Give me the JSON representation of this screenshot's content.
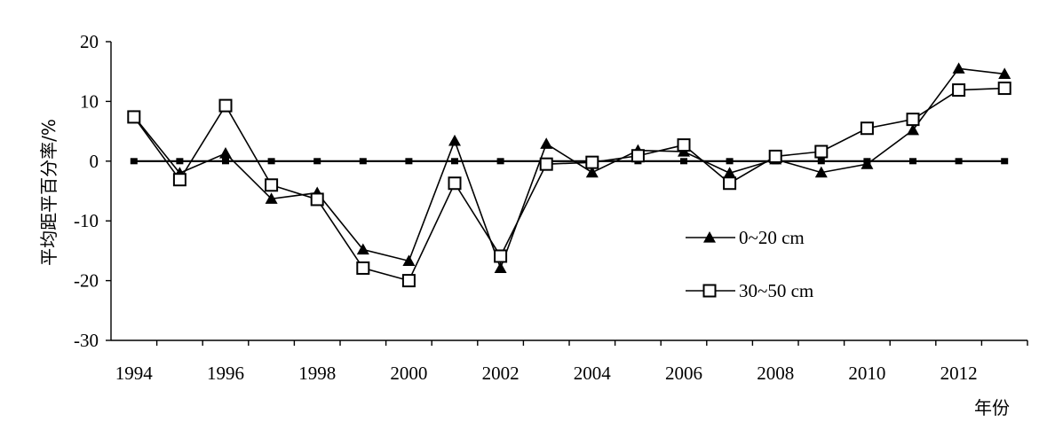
{
  "chart_data": {
    "type": "line",
    "title": "",
    "xlabel": "年份",
    "ylabel": "平均距平百分率/%",
    "ylim": [
      -30,
      20
    ],
    "yticks": [
      20,
      10,
      0,
      -10,
      -20,
      -30
    ],
    "x": [
      1994,
      1995,
      1996,
      1997,
      1998,
      1999,
      2000,
      2001,
      2002,
      2003,
      2004,
      2005,
      2006,
      2007,
      2008,
      2009,
      2010,
      2011,
      2012,
      2013
    ],
    "xtick_labels": [
      "1994",
      "1996",
      "1998",
      "2000",
      "2002",
      "2004",
      "2006",
      "2008",
      "2010",
      "2012"
    ],
    "series": [
      {
        "name": "0~20 cm",
        "marker": "filled-triangle",
        "values": [
          7.5,
          -2,
          1.3,
          -6.3,
          -5.3,
          -14.8,
          -16.7,
          3.4,
          -17.9,
          2.9,
          -1.9,
          1.8,
          1.6,
          -2,
          0.3,
          -1.9,
          -0.5,
          5.2,
          15.5,
          14.6
        ]
      },
      {
        "name": "30~50 cm",
        "marker": "open-square",
        "values": [
          7.4,
          -3.1,
          9.3,
          -4,
          -6.4,
          -17.9,
          -20,
          -3.7,
          -15.9,
          -0.5,
          -0.2,
          0.9,
          2.7,
          -3.7,
          0.8,
          1.6,
          5.5,
          7,
          11.9,
          12.2
        ]
      },
      {
        "name": "",
        "marker": "small-square",
        "values": [
          0,
          0,
          0,
          0,
          0,
          0,
          0,
          0,
          0,
          0,
          0,
          0,
          0,
          0,
          0,
          0,
          0,
          0,
          0,
          0
        ]
      }
    ],
    "legend_position": "center-right",
    "grid": false
  }
}
